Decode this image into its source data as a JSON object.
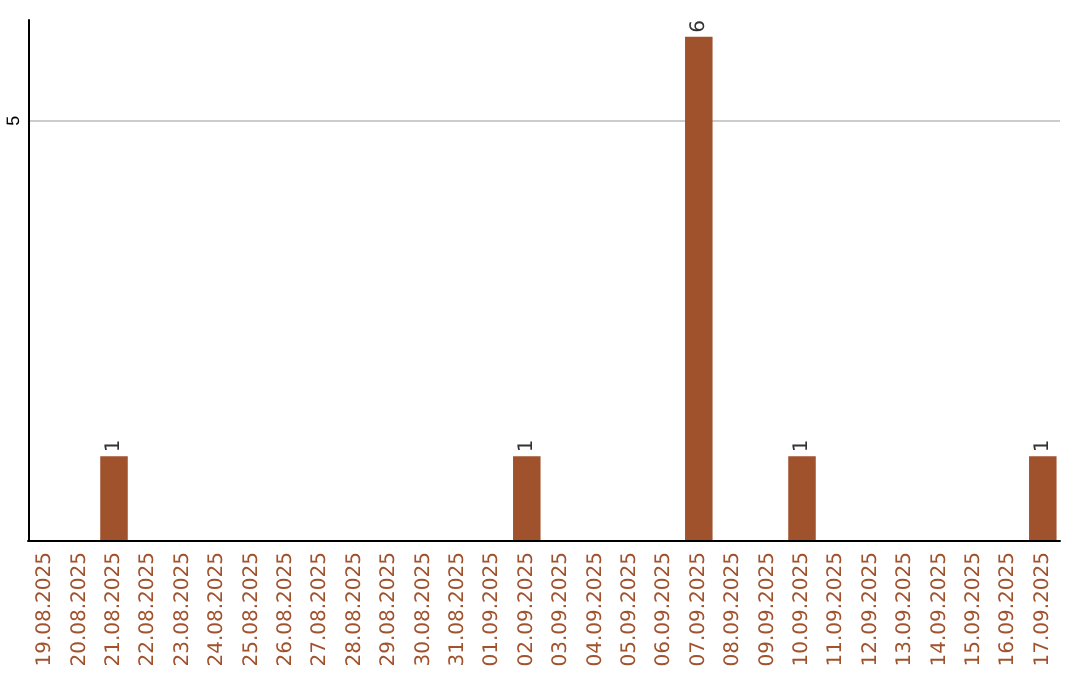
{
  "chart_data": {
    "type": "bar",
    "categories": [
      "19.08.2025",
      "20.08.2025",
      "21.08.2025",
      "22.08.2025",
      "23.08.2025",
      "24.08.2025",
      "25.08.2025",
      "26.08.2025",
      "27.08.2025",
      "28.08.2025",
      "29.08.2025",
      "30.08.2025",
      "31.08.2025",
      "01.09.2025",
      "02.09.2025",
      "03.09.2025",
      "04.09.2025",
      "05.09.2025",
      "06.09.2025",
      "07.09.2025",
      "08.09.2025",
      "09.09.2025",
      "10.09.2025",
      "11.09.2025",
      "12.09.2025",
      "13.09.2025",
      "14.09.2025",
      "15.09.2025",
      "16.09.2025",
      "17.09.2025"
    ],
    "values": [
      0,
      0,
      1,
      0,
      0,
      0,
      0,
      0,
      0,
      0,
      0,
      0,
      0,
      0,
      1,
      0,
      0,
      0,
      0,
      6,
      0,
      0,
      1,
      0,
      0,
      0,
      0,
      0,
      0,
      1
    ],
    "color": "#a0522d",
    "value_labels": [
      null,
      null,
      "1",
      null,
      null,
      null,
      null,
      null,
      null,
      null,
      null,
      null,
      null,
      null,
      "1",
      null,
      null,
      null,
      null,
      "6",
      null,
      null,
      "1",
      null,
      null,
      null,
      null,
      null,
      null,
      "1"
    ],
    "ylim": [
      0,
      6.2
    ],
    "yticks": [
      5
    ],
    "grid": "y"
  }
}
